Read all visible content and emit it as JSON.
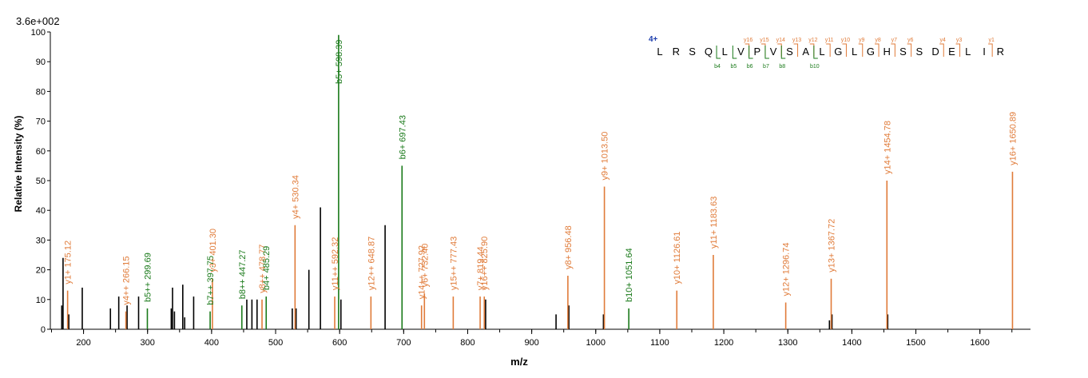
{
  "chart_data": {
    "type": "bar",
    "title": "",
    "max_label": "3.6e+002",
    "xlabel": "m/z",
    "ylabel": "Relative   Intensity (%)",
    "xlim": [
      150,
      1660
    ],
    "ylim": [
      0,
      100
    ],
    "xticks": [
      200,
      300,
      400,
      500,
      600,
      700,
      800,
      900,
      1000,
      1100,
      1200,
      1300,
      1400,
      1500,
      1600
    ],
    "yticks": [
      0,
      10,
      20,
      30,
      40,
      50,
      60,
      70,
      80,
      90,
      100
    ],
    "colors": {
      "b": "#1a7a1a",
      "y": "#e07b39",
      "other": "#000000",
      "charge": "#1f3fae"
    },
    "unassigned_peaks": [
      {
        "x": 166,
        "y": 8
      },
      {
        "x": 168,
        "y": 24
      },
      {
        "x": 177,
        "y": 5
      },
      {
        "x": 198,
        "y": 14
      },
      {
        "x": 242,
        "y": 7
      },
      {
        "x": 255,
        "y": 11
      },
      {
        "x": 268,
        "y": 8
      },
      {
        "x": 286,
        "y": 11
      },
      {
        "x": 337,
        "y": 7
      },
      {
        "x": 339,
        "y": 14
      },
      {
        "x": 342,
        "y": 6
      },
      {
        "x": 355,
        "y": 15
      },
      {
        "x": 358,
        "y": 4
      },
      {
        "x": 372,
        "y": 11
      },
      {
        "x": 455,
        "y": 10
      },
      {
        "x": 463,
        "y": 10
      },
      {
        "x": 471,
        "y": 10
      },
      {
        "x": 526,
        "y": 7
      },
      {
        "x": 532,
        "y": 7
      },
      {
        "x": 552,
        "y": 20
      },
      {
        "x": 570,
        "y": 41
      },
      {
        "x": 602,
        "y": 10
      },
      {
        "x": 671,
        "y": 35
      },
      {
        "x": 828,
        "y": 10
      },
      {
        "x": 938,
        "y": 5
      },
      {
        "x": 958,
        "y": 8
      },
      {
        "x": 1012,
        "y": 5
      },
      {
        "x": 1365,
        "y": 3
      },
      {
        "x": 1369,
        "y": 5
      },
      {
        "x": 1456,
        "y": 5
      }
    ],
    "annotated_peaks": [
      {
        "label": "y1+ 175.12",
        "ion": "y",
        "x": 175.12,
        "y": 13
      },
      {
        "label": "y4++ 266.15",
        "ion": "y",
        "x": 266.15,
        "y": 6
      },
      {
        "label": "b5++ 299.69",
        "ion": "b",
        "x": 299.69,
        "y": 7
      },
      {
        "label": "b7++ 397.75",
        "ion": "b",
        "x": 397.75,
        "y": 6
      },
      {
        "label": "y3+ 401.30",
        "ion": "y",
        "x": 401.3,
        "y": 17
      },
      {
        "label": "b8++ 447.27",
        "ion": "b",
        "x": 447.27,
        "y": 8
      },
      {
        "label": "y8++ 478.77",
        "ion": "y",
        "x": 478.77,
        "y": 10
      },
      {
        "label": "b4+ 485.29",
        "ion": "b",
        "x": 485.29,
        "y": 11
      },
      {
        "label": "y4+ 530.34",
        "ion": "y",
        "x": 530.34,
        "y": 35
      },
      {
        "label": "y11++ 592.32",
        "ion": "y",
        "x": 592.32,
        "y": 11
      },
      {
        "label": "b5+ 598.39",
        "ion": "b",
        "x": 598.39,
        "y": 99
      },
      {
        "label": "y12++ 648.87",
        "ion": "y",
        "x": 648.87,
        "y": 11
      },
      {
        "label": "b6+ 697.43",
        "ion": "b",
        "x": 697.43,
        "y": 55
      },
      {
        "label": "y14++ 727.92",
        "ion": "y",
        "x": 727.92,
        "y": 8
      },
      {
        "label": "y6+ 732.40",
        "ion": "y",
        "x": 732.4,
        "y": 12
      },
      {
        "label": "y15++ 777.43",
        "ion": "y",
        "x": 777.43,
        "y": 11
      },
      {
        "label": "y7+ 819.44",
        "ion": "y",
        "x": 819.44,
        "y": 11
      },
      {
        "label": "y16++ 825.90",
        "ion": "y",
        "x": 825.9,
        "y": 11
      },
      {
        "label": "y8+ 956.48",
        "ion": "y",
        "x": 956.48,
        "y": 18
      },
      {
        "label": "y9+ 1013.50",
        "ion": "y",
        "x": 1013.5,
        "y": 48
      },
      {
        "label": "b10+ 1051.64",
        "ion": "b",
        "x": 1051.64,
        "y": 7
      },
      {
        "label": "y10+ 1126.61",
        "ion": "y",
        "x": 1126.61,
        "y": 13
      },
      {
        "label": "y11+ 1183.63",
        "ion": "y",
        "x": 1183.63,
        "y": 25
      },
      {
        "label": "y12+ 1296.74",
        "ion": "y",
        "x": 1296.74,
        "y": 9
      },
      {
        "label": "y13+ 1367.72",
        "ion": "y",
        "x": 1367.72,
        "y": 17
      },
      {
        "label": "y14+ 1454.78",
        "ion": "y",
        "x": 1454.78,
        "y": 50
      },
      {
        "label": "y16+ 1650.89",
        "ion": "y",
        "x": 1650.89,
        "y": 53
      }
    ],
    "sequence_map": {
      "charge": "4+",
      "residues": [
        "L",
        "R",
        "S",
        "Q",
        "L",
        "V",
        "P",
        "V",
        "S",
        "A",
        "L",
        "G",
        "L",
        "G",
        "H",
        "S",
        "S",
        "D",
        "E",
        "L",
        "I",
        "R"
      ],
      "y_ions": [
        {
          "label": "y16",
          "after": 5
        },
        {
          "label": "y15",
          "after": 6
        },
        {
          "label": "y14",
          "after": 7
        },
        {
          "label": "y13",
          "after": 8
        },
        {
          "label": "y12",
          "after": 9
        },
        {
          "label": "y11",
          "after": 10
        },
        {
          "label": "y10",
          "after": 11
        },
        {
          "label": "y9",
          "after": 12
        },
        {
          "label": "y8",
          "after": 13
        },
        {
          "label": "y7",
          "after": 14
        },
        {
          "label": "y6",
          "after": 15
        },
        {
          "label": "y4",
          "after": 17
        },
        {
          "label": "y3",
          "after": 18
        },
        {
          "label": "y1",
          "after": 20
        }
      ],
      "b_ions": [
        {
          "label": "b4",
          "after": 3
        },
        {
          "label": "b5",
          "after": 4
        },
        {
          "label": "b6",
          "after": 5
        },
        {
          "label": "b7",
          "after": 6
        },
        {
          "label": "b8",
          "after": 7
        },
        {
          "label": "b10",
          "after": 9
        }
      ]
    }
  }
}
